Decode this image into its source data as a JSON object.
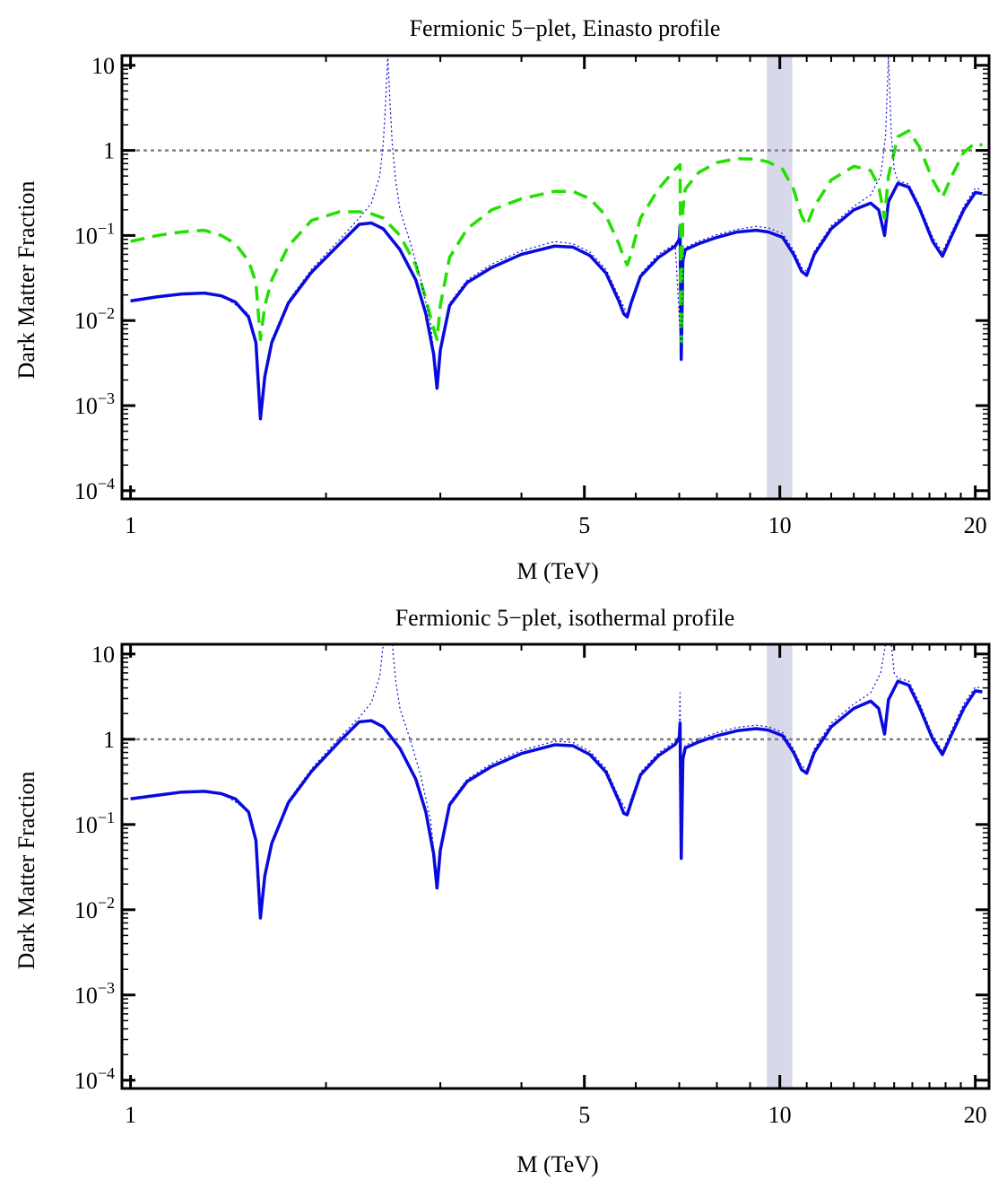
{
  "figure": {
    "panels": [
      {
        "title": "Fermionic 5−plet, Einasto profile",
        "xlabel": "M (TeV)",
        "ylabel": "Dark Matter Fraction"
      },
      {
        "title": "Fermionic 5−plet, isothermal profile",
        "xlabel": "M (TeV)",
        "ylabel": "Dark Matter Fraction"
      }
    ]
  },
  "chart_data": [
    {
      "type": "line",
      "title": "Fermionic 5−plet, Einasto profile",
      "xlabel": "M (TeV)",
      "ylabel": "Dark Matter Fraction",
      "xscale": "log",
      "yscale": "log",
      "xlim": [
        0.97,
        21
      ],
      "ylim": [
        8e-05,
        13
      ],
      "x_ticks": [
        1,
        5,
        10,
        20
      ],
      "x_tick_labels": [
        "1",
        "5",
        "10",
        "20"
      ],
      "y_ticks": [
        0.0001,
        0.001,
        0.01,
        0.1,
        1,
        10
      ],
      "y_tick_labels": [
        {
          "base": "10",
          "exp": "−4"
        },
        {
          "base": "10",
          "exp": "−3"
        },
        {
          "base": "10",
          "exp": "−2"
        },
        {
          "base": "10",
          "exp": "−1"
        },
        {
          "base": "1",
          "exp": ""
        },
        {
          "base": "10",
          "exp": ""
        }
      ],
      "band": {
        "x": [
          9.55,
          10.45
        ],
        "color": "#d8d8eb"
      },
      "reference_line": {
        "y": 1,
        "style": "dotted",
        "color": "#808080"
      },
      "grid": false,
      "series": [
        {
          "style": "solid",
          "color": "#0a0adc",
          "width": 3.5,
          "x": [
            1.0,
            1.1,
            1.2,
            1.3,
            1.38,
            1.45,
            1.52,
            1.56,
            1.585,
            1.61,
            1.65,
            1.75,
            1.9,
            2.1,
            2.25,
            2.35,
            2.45,
            2.6,
            2.75,
            2.85,
            2.93,
            2.965,
            3.0,
            3.1,
            3.3,
            3.6,
            4.0,
            4.5,
            4.8,
            5.1,
            5.4,
            5.65,
            5.75,
            5.82,
            5.9,
            6.1,
            6.5,
            6.9,
            7.0,
            7.02,
            7.05,
            7.09,
            7.15,
            7.5,
            8.0,
            8.6,
            9.2,
            9.6,
            10.1,
            10.5,
            10.8,
            11.0,
            11.3,
            12.0,
            13.0,
            13.8,
            14.2,
            14.5,
            14.7,
            15.2,
            15.8,
            16.4,
            17.2,
            17.8,
            18.4,
            19.2,
            20.0,
            20.5
          ],
          "y": [
            0.017,
            0.019,
            0.0205,
            0.021,
            0.0195,
            0.0165,
            0.011,
            0.0055,
            0.0007,
            0.0022,
            0.0055,
            0.016,
            0.037,
            0.08,
            0.135,
            0.14,
            0.12,
            0.068,
            0.03,
            0.012,
            0.004,
            0.0016,
            0.0045,
            0.015,
            0.028,
            0.042,
            0.06,
            0.075,
            0.073,
            0.058,
            0.036,
            0.017,
            0.012,
            0.011,
            0.016,
            0.033,
            0.055,
            0.075,
            0.09,
            0.13,
            0.0035,
            0.05,
            0.068,
            0.08,
            0.095,
            0.11,
            0.115,
            0.11,
            0.095,
            0.06,
            0.038,
            0.034,
            0.06,
            0.12,
            0.2,
            0.24,
            0.2,
            0.1,
            0.25,
            0.41,
            0.37,
            0.21,
            0.085,
            0.057,
            0.1,
            0.2,
            0.32,
            0.31
          ]
        },
        {
          "style": "dashed",
          "color": "#22e000",
          "width": 3.5,
          "x": [
            1.0,
            1.1,
            1.2,
            1.3,
            1.38,
            1.45,
            1.52,
            1.56,
            1.585,
            1.61,
            1.65,
            1.75,
            1.9,
            2.1,
            2.25,
            2.35,
            2.45,
            2.6,
            2.75,
            2.85,
            2.93,
            2.965,
            3.0,
            3.1,
            3.3,
            3.6,
            4.0,
            4.5,
            4.8,
            5.1,
            5.4,
            5.65,
            5.75,
            5.82,
            5.9,
            6.1,
            6.5,
            6.9,
            7.0,
            7.02,
            7.05,
            7.09,
            7.15,
            7.5,
            8.0,
            8.6,
            9.2,
            9.6,
            10.1,
            10.5,
            10.8,
            11.0,
            11.3,
            12.0,
            13.0,
            13.8,
            14.2,
            14.5,
            14.7,
            15.2,
            15.8,
            16.4,
            17.2,
            17.8,
            18.4,
            19.2,
            20.0,
            20.5
          ],
          "y": [
            0.085,
            0.1,
            0.11,
            0.115,
            0.1,
            0.08,
            0.05,
            0.028,
            0.006,
            0.015,
            0.03,
            0.075,
            0.15,
            0.19,
            0.19,
            0.18,
            0.16,
            0.1,
            0.045,
            0.018,
            0.008,
            0.006,
            0.015,
            0.055,
            0.12,
            0.2,
            0.27,
            0.33,
            0.33,
            0.27,
            0.17,
            0.08,
            0.055,
            0.045,
            0.06,
            0.16,
            0.35,
            0.6,
            0.66,
            0.68,
            0.0055,
            0.2,
            0.35,
            0.55,
            0.72,
            0.8,
            0.79,
            0.73,
            0.6,
            0.35,
            0.17,
            0.13,
            0.22,
            0.45,
            0.65,
            0.58,
            0.38,
            0.16,
            0.5,
            1.45,
            1.7,
            1.1,
            0.45,
            0.28,
            0.5,
            0.95,
            1.22,
            1.15
          ]
        },
        {
          "style": "dotted",
          "color": "#0a0adc",
          "width": 1.2,
          "x": [
            1.0,
            1.2,
            1.38,
            1.52,
            1.56,
            1.585,
            1.61,
            1.65,
            1.75,
            1.9,
            2.1,
            2.25,
            2.35,
            2.42,
            2.45,
            2.47,
            2.49,
            2.51,
            2.53,
            2.56,
            2.6,
            2.7,
            2.8,
            2.9,
            2.965,
            3.0,
            3.1,
            3.3,
            3.6,
            4.0,
            4.5,
            4.8,
            5.1,
            5.4,
            5.65,
            5.82,
            5.9,
            6.1,
            6.5,
            6.9,
            7.05,
            7.09,
            7.15,
            7.5,
            8.0,
            8.6,
            9.2,
            9.6,
            10.1,
            10.5,
            10.8,
            11.0,
            11.3,
            12.0,
            13.0,
            13.8,
            14.3,
            14.55,
            14.7,
            14.85,
            15.0,
            15.2,
            15.8,
            16.4,
            17.2,
            17.8,
            18.4,
            19.2,
            20.0,
            20.5
          ],
          "y": [
            0.0175,
            0.021,
            0.02,
            0.012,
            0.006,
            0.0008,
            0.0024,
            0.006,
            0.017,
            0.04,
            0.09,
            0.16,
            0.24,
            0.5,
            1.2,
            3.5,
            13,
            3.5,
            1.2,
            0.45,
            0.2,
            0.08,
            0.03,
            0.009,
            0.0017,
            0.005,
            0.016,
            0.03,
            0.046,
            0.066,
            0.085,
            0.08,
            0.064,
            0.04,
            0.019,
            0.012,
            0.017,
            0.035,
            0.06,
            0.08,
            0.004,
            0.053,
            0.072,
            0.086,
            0.102,
            0.118,
            0.128,
            0.123,
            0.105,
            0.067,
            0.042,
            0.038,
            0.065,
            0.13,
            0.22,
            0.3,
            0.5,
            1.5,
            13,
            1.5,
            0.6,
            0.44,
            0.4,
            0.23,
            0.095,
            0.064,
            0.11,
            0.22,
            0.36,
            0.34
          ]
        }
      ]
    },
    {
      "type": "line",
      "title": "Fermionic 5−plet, isothermal profile",
      "xlabel": "M (TeV)",
      "ylabel": "Dark Matter Fraction",
      "xscale": "log",
      "yscale": "log",
      "xlim": [
        0.97,
        21
      ],
      "ylim": [
        8e-05,
        13
      ],
      "x_ticks": [
        1,
        5,
        10,
        20
      ],
      "x_tick_labels": [
        "1",
        "5",
        "10",
        "20"
      ],
      "y_ticks": [
        0.0001,
        0.001,
        0.01,
        0.1,
        1,
        10
      ],
      "y_tick_labels": [
        {
          "base": "10",
          "exp": "−4"
        },
        {
          "base": "10",
          "exp": "−3"
        },
        {
          "base": "10",
          "exp": "−2"
        },
        {
          "base": "10",
          "exp": "−1"
        },
        {
          "base": "1",
          "exp": ""
        },
        {
          "base": "10",
          "exp": ""
        }
      ],
      "band": {
        "x": [
          9.55,
          10.45
        ],
        "color": "#d8d8eb"
      },
      "reference_line": {
        "y": 1,
        "style": "dotted",
        "color": "#808080"
      },
      "grid": false,
      "series": [
        {
          "style": "solid",
          "color": "#0a0adc",
          "width": 3.5,
          "x": [
            1.0,
            1.1,
            1.2,
            1.3,
            1.38,
            1.45,
            1.52,
            1.56,
            1.585,
            1.61,
            1.65,
            1.75,
            1.9,
            2.1,
            2.25,
            2.35,
            2.45,
            2.6,
            2.75,
            2.85,
            2.93,
            2.965,
            3.0,
            3.1,
            3.3,
            3.6,
            4.0,
            4.5,
            4.8,
            5.1,
            5.4,
            5.65,
            5.75,
            5.82,
            5.9,
            6.1,
            6.5,
            6.9,
            7.0,
            7.02,
            7.05,
            7.09,
            7.15,
            7.5,
            8.0,
            8.6,
            9.2,
            9.6,
            10.1,
            10.5,
            10.8,
            11.0,
            11.3,
            12.0,
            13.0,
            13.8,
            14.2,
            14.5,
            14.7,
            15.2,
            15.8,
            16.4,
            17.2,
            17.8,
            18.4,
            19.2,
            20.0,
            20.5
          ],
          "y": [
            0.2,
            0.22,
            0.24,
            0.245,
            0.23,
            0.2,
            0.14,
            0.065,
            0.008,
            0.025,
            0.06,
            0.18,
            0.42,
            0.95,
            1.6,
            1.65,
            1.4,
            0.78,
            0.34,
            0.14,
            0.045,
            0.018,
            0.05,
            0.17,
            0.32,
            0.48,
            0.68,
            0.86,
            0.84,
            0.66,
            0.41,
            0.19,
            0.135,
            0.13,
            0.18,
            0.38,
            0.64,
            0.87,
            1.05,
            1.55,
            0.04,
            0.58,
            0.79,
            0.93,
            1.1,
            1.26,
            1.33,
            1.28,
            1.1,
            0.7,
            0.44,
            0.4,
            0.7,
            1.4,
            2.3,
            2.8,
            2.3,
            1.15,
            2.9,
            4.8,
            4.3,
            2.4,
            1.0,
            0.66,
            1.15,
            2.3,
            3.7,
            3.6
          ]
        },
        {
          "style": "dotted",
          "color": "#0a0adc",
          "width": 1.2,
          "x": [
            1.0,
            1.2,
            1.38,
            1.52,
            1.56,
            1.585,
            1.61,
            1.65,
            1.75,
            1.9,
            2.1,
            2.25,
            2.35,
            2.42,
            2.45,
            2.47,
            2.49,
            2.51,
            2.53,
            2.56,
            2.6,
            2.7,
            2.8,
            2.9,
            2.965,
            3.0,
            3.1,
            3.3,
            3.6,
            4.0,
            4.5,
            4.8,
            5.1,
            5.4,
            5.65,
            5.82,
            5.9,
            6.1,
            6.5,
            6.9,
            7.0,
            7.02,
            7.05,
            7.09,
            7.15,
            7.5,
            8.0,
            8.6,
            9.2,
            9.6,
            10.1,
            10.5,
            10.8,
            11.0,
            11.3,
            12.0,
            13.0,
            13.8,
            14.3,
            14.55,
            14.7,
            14.85,
            15.0,
            15.2,
            15.8,
            16.4,
            17.2,
            17.8,
            18.4,
            19.2,
            20.0,
            20.5
          ],
          "y": [
            0.205,
            0.245,
            0.235,
            0.145,
            0.07,
            0.009,
            0.027,
            0.065,
            0.19,
            0.45,
            1.05,
            1.8,
            2.7,
            5.5,
            13,
            13,
            13,
            13,
            13,
            5.0,
            2.3,
            0.95,
            0.37,
            0.11,
            0.02,
            0.055,
            0.18,
            0.34,
            0.52,
            0.74,
            0.95,
            0.92,
            0.72,
            0.45,
            0.21,
            0.14,
            0.2,
            0.41,
            0.69,
            0.94,
            1.1,
            3.5,
            0.045,
            0.63,
            0.85,
            1.0,
            1.2,
            1.38,
            1.46,
            1.4,
            1.2,
            0.77,
            0.49,
            0.44,
            0.77,
            1.55,
            2.6,
            3.5,
            6.0,
            13,
            13,
            13,
            6.0,
            5.2,
            4.8,
            2.7,
            1.1,
            0.73,
            1.28,
            2.6,
            4.1,
            4.0
          ]
        }
      ]
    }
  ]
}
